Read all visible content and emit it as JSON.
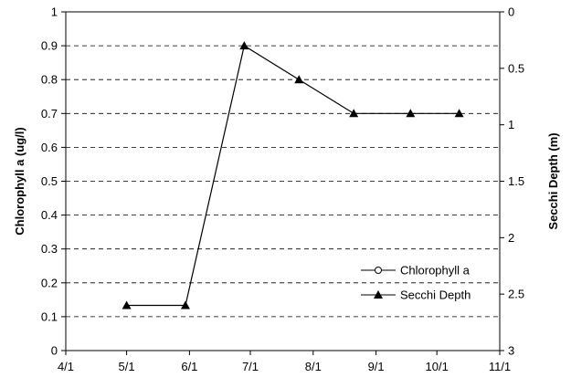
{
  "chart_data": {
    "type": "line",
    "x_tick_labels": [
      "4/1",
      "5/1",
      "6/1",
      "7/1",
      "8/1",
      "9/1",
      "10/1",
      "11/1"
    ],
    "xlim": [
      "2000-04-01",
      "2000-11-01"
    ],
    "ylabel_left": "Chlorophyll a (ug/l)",
    "ylim_left": [
      0,
      1
    ],
    "yticks_left": [
      "0",
      "0.1",
      "0.2",
      "0.3",
      "0.4",
      "0.5",
      "0.6",
      "0.7",
      "0.8",
      "0.9",
      "1"
    ],
    "ylabel_right": "Secchi Depth (m)",
    "ylim_right": [
      0,
      3
    ],
    "right_axis_inverted": true,
    "yticks_right": [
      "0",
      "0.5",
      "1",
      "1.5",
      "2",
      "2.5",
      "3"
    ],
    "grid": "horizontal dashed",
    "legend_position": "lower-right",
    "series": [
      {
        "name": "Chlorophyll a",
        "marker": "open-circle",
        "axis": "left",
        "points": []
      },
      {
        "name": "Secchi Depth",
        "marker": "filled-triangle",
        "axis": "right",
        "points": [
          {
            "x": "2000-05-01",
            "y": 2.6
          },
          {
            "x": "2000-05-30",
            "y": 2.6
          },
          {
            "x": "2000-06-28",
            "y": 0.3
          },
          {
            "x": "2000-07-25",
            "y": 0.6
          },
          {
            "x": "2000-08-21",
            "y": 0.9
          },
          {
            "x": "2000-09-18",
            "y": 0.9
          },
          {
            "x": "2000-10-12",
            "y": 0.9
          }
        ]
      }
    ]
  }
}
